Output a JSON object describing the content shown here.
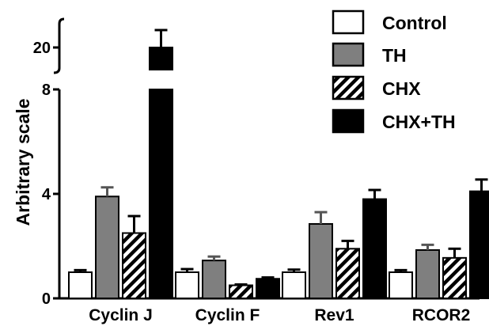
{
  "chart_data": {
    "type": "bar",
    "ylabel": "Arbitrary scale",
    "xlabel": "",
    "axis_break": {
      "lower_range": [
        0,
        8
      ],
      "upper_tick": 20
    },
    "yticks": [
      "0",
      "4",
      "8",
      "20"
    ],
    "categories": [
      "Cyclin J",
      "Cyclin F",
      "Rev1",
      "RCOR2"
    ],
    "series": [
      {
        "name": "Control",
        "pattern": "white",
        "values": [
          1.0,
          1.0,
          1.0,
          1.0
        ],
        "errors": [
          0.08,
          0.12,
          0.1,
          0.08
        ]
      },
      {
        "name": "TH",
        "pattern": "gray",
        "values": [
          3.9,
          1.45,
          2.85,
          1.85
        ],
        "errors": [
          0.35,
          0.15,
          0.45,
          0.2
        ]
      },
      {
        "name": "CHX",
        "pattern": "hatched",
        "values": [
          2.5,
          0.5,
          1.9,
          1.55
        ],
        "errors": [
          0.65,
          0.03,
          0.3,
          0.35
        ]
      },
      {
        "name": "CHX+TH",
        "pattern": "black",
        "values": [
          20.0,
          0.75,
          3.8,
          4.1
        ],
        "errors": [
          1.5,
          0.05,
          0.35,
          0.45
        ]
      }
    ],
    "legend_position": "top-right",
    "colors": {
      "Control": "#ffffff",
      "TH": "#7f7f7f",
      "CHX": "hatch",
      "CHX+TH": "#000000"
    }
  }
}
